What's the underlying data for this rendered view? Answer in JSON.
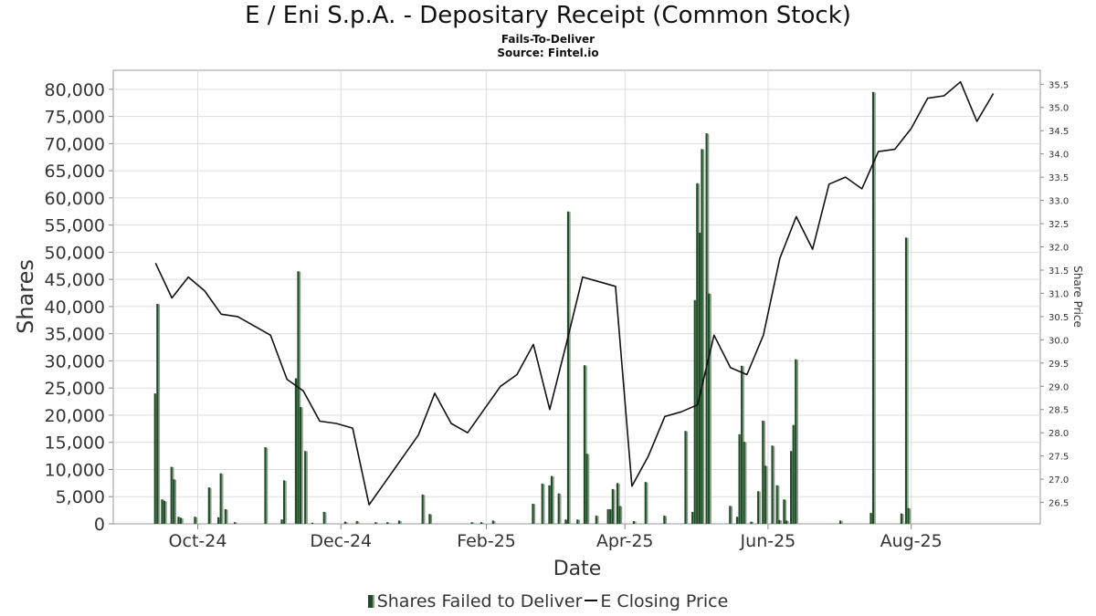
{
  "chart_data": {
    "type": "bar",
    "title": "E / Eni S.p.A. - Depositary Receipt (Common Stock)",
    "subtitle": "Fails-To-Deliver",
    "source": "Source: Fintel.io",
    "xlabel": "Date",
    "ylabel": "Shares",
    "y2label": "Share Price",
    "xlim": [
      "2024-08-26",
      "2025-09-25"
    ],
    "ylim": [
      0,
      83500
    ],
    "y2lim": [
      26.04,
      35.8
    ],
    "x_ticks": [
      {
        "label": "Oct-24",
        "date": "2024-10-01"
      },
      {
        "label": "Dec-24",
        "date": "2024-12-01"
      },
      {
        "label": "Feb-25",
        "date": "2025-02-01"
      },
      {
        "label": "Apr-25",
        "date": "2025-04-01"
      },
      {
        "label": "Jun-25",
        "date": "2025-06-01"
      },
      {
        "label": "Aug-25",
        "date": "2025-08-01"
      }
    ],
    "y_ticks": [
      "0",
      "5,000",
      "10,000",
      "15,000",
      "20,000",
      "25,000",
      "30,000",
      "35,000",
      "40,000",
      "45,000",
      "50,000",
      "55,000",
      "60,000",
      "65,000",
      "70,000",
      "75,000",
      "80,000"
    ],
    "y2_ticks": [
      "26.5",
      "27.0",
      "27.5",
      "28.0",
      "28.5",
      "29.0",
      "29.5",
      "30.0",
      "30.5",
      "31.0",
      "31.5",
      "32.0",
      "32.5",
      "33.0",
      "33.5",
      "34.0",
      "34.5",
      "35.0",
      "35.5"
    ],
    "grid": true,
    "legend_position": "bottom",
    "series": [
      {
        "name": "Shares Failed to Deliver",
        "kind": "bar",
        "color": "#1d4d24",
        "points": [
          [
            "2024-09-13",
            24000
          ],
          [
            "2024-09-14",
            40500
          ],
          [
            "2024-09-16",
            4500
          ],
          [
            "2024-09-17",
            4200
          ],
          [
            "2024-09-20",
            10500
          ],
          [
            "2024-09-21",
            8200
          ],
          [
            "2024-09-23",
            1300
          ],
          [
            "2024-09-24",
            1100
          ],
          [
            "2024-09-30",
            1300
          ],
          [
            "2024-10-06",
            6700
          ],
          [
            "2024-10-10",
            1200
          ],
          [
            "2024-10-11",
            9300
          ],
          [
            "2024-10-13",
            2700
          ],
          [
            "2024-10-17",
            300
          ],
          [
            "2024-10-30",
            14100
          ],
          [
            "2024-11-06",
            800
          ],
          [
            "2024-11-07",
            8000
          ],
          [
            "2024-11-12",
            26800
          ],
          [
            "2024-11-13",
            46500
          ],
          [
            "2024-11-14",
            21500
          ],
          [
            "2024-11-16",
            13400
          ],
          [
            "2024-11-19",
            200
          ],
          [
            "2024-11-24",
            2200
          ],
          [
            "2024-12-03",
            400
          ],
          [
            "2024-12-08",
            500
          ],
          [
            "2024-12-16",
            300
          ],
          [
            "2024-12-21",
            300
          ],
          [
            "2024-12-26",
            600
          ],
          [
            "2025-01-05",
            5400
          ],
          [
            "2025-01-08",
            1800
          ],
          [
            "2025-01-26",
            300
          ],
          [
            "2025-01-30",
            300
          ],
          [
            "2025-02-04",
            600
          ],
          [
            "2025-02-21",
            3700
          ],
          [
            "2025-02-25",
            7400
          ],
          [
            "2025-02-28",
            7100
          ],
          [
            "2025-03-01",
            8800
          ],
          [
            "2025-03-04",
            5600
          ],
          [
            "2025-03-07",
            800
          ],
          [
            "2025-03-08",
            57500
          ],
          [
            "2025-03-12",
            800
          ],
          [
            "2025-03-15",
            29200
          ],
          [
            "2025-03-16",
            12900
          ],
          [
            "2025-03-20",
            1500
          ],
          [
            "2025-03-25",
            2700
          ],
          [
            "2025-03-26",
            2700
          ],
          [
            "2025-03-27",
            6400
          ],
          [
            "2025-03-29",
            7500
          ],
          [
            "2025-03-30",
            3300
          ],
          [
            "2025-04-05",
            500
          ],
          [
            "2025-04-10",
            7700
          ],
          [
            "2025-04-18",
            1500
          ],
          [
            "2025-04-27",
            17100
          ],
          [
            "2025-04-30",
            2200
          ],
          [
            "2025-05-01",
            41200
          ],
          [
            "2025-05-02",
            62700
          ],
          [
            "2025-05-03",
            53600
          ],
          [
            "2025-05-04",
            69000
          ],
          [
            "2025-05-06",
            71900
          ],
          [
            "2025-05-07",
            42400
          ],
          [
            "2025-05-16",
            3300
          ],
          [
            "2025-05-19",
            1300
          ],
          [
            "2025-05-20",
            16500
          ],
          [
            "2025-05-21",
            29100
          ],
          [
            "2025-05-22",
            15100
          ],
          [
            "2025-05-25",
            400
          ],
          [
            "2025-05-28",
            6000
          ],
          [
            "2025-05-30",
            19000
          ],
          [
            "2025-05-31",
            10700
          ],
          [
            "2025-06-03",
            14400
          ],
          [
            "2025-06-05",
            7100
          ],
          [
            "2025-06-06",
            700
          ],
          [
            "2025-06-08",
            4500
          ],
          [
            "2025-06-09",
            600
          ],
          [
            "2025-06-11",
            13400
          ],
          [
            "2025-06-12",
            18200
          ],
          [
            "2025-06-13",
            30300
          ],
          [
            "2025-07-02",
            600
          ],
          [
            "2025-07-15",
            2000
          ],
          [
            "2025-07-16",
            79500
          ],
          [
            "2025-07-28",
            1900
          ],
          [
            "2025-07-30",
            52700
          ],
          [
            "2025-07-31",
            2900
          ]
        ]
      },
      {
        "name": "E Closing Price",
        "kind": "line",
        "color": "#111111",
        "points": [
          [
            "2024-09-13",
            31.65
          ],
          [
            "2024-09-20",
            30.9
          ],
          [
            "2024-09-27",
            31.35
          ],
          [
            "2024-10-04",
            31.05
          ],
          [
            "2024-10-11",
            30.55
          ],
          [
            "2024-10-18",
            30.5
          ],
          [
            "2024-10-25",
            30.3
          ],
          [
            "2024-11-01",
            30.1
          ],
          [
            "2024-11-08",
            29.15
          ],
          [
            "2024-11-15",
            28.9
          ],
          [
            "2024-11-22",
            28.25
          ],
          [
            "2024-11-29",
            28.2
          ],
          [
            "2024-12-06",
            28.1
          ],
          [
            "2024-12-13",
            26.45
          ],
          [
            "2024-12-20",
            26.95
          ],
          [
            "2024-12-27",
            27.45
          ],
          [
            "2025-01-03",
            27.95
          ],
          [
            "2025-01-10",
            28.85
          ],
          [
            "2025-01-17",
            28.2
          ],
          [
            "2025-01-24",
            28.0
          ],
          [
            "2025-01-31",
            28.5
          ],
          [
            "2025-02-07",
            29.0
          ],
          [
            "2025-02-14",
            29.25
          ],
          [
            "2025-02-21",
            29.9
          ],
          [
            "2025-02-28",
            28.5
          ],
          [
            "2025-03-07",
            29.9
          ],
          [
            "2025-03-14",
            31.35
          ],
          [
            "2025-03-21",
            31.25
          ],
          [
            "2025-03-28",
            31.15
          ],
          [
            "2025-04-04",
            26.85
          ],
          [
            "2025-04-11",
            27.5
          ],
          [
            "2025-04-18",
            28.35
          ],
          [
            "2025-04-25",
            28.45
          ],
          [
            "2025-05-02",
            28.6
          ],
          [
            "2025-05-09",
            30.1
          ],
          [
            "2025-05-16",
            29.4
          ],
          [
            "2025-05-23",
            29.25
          ],
          [
            "2025-05-30",
            30.1
          ],
          [
            "2025-06-06",
            31.75
          ],
          [
            "2025-06-13",
            32.65
          ],
          [
            "2025-06-20",
            31.95
          ],
          [
            "2025-06-27",
            33.35
          ],
          [
            "2025-07-04",
            33.5
          ],
          [
            "2025-07-11",
            33.25
          ],
          [
            "2025-07-18",
            34.05
          ],
          [
            "2025-07-25",
            34.1
          ],
          [
            "2025-08-01",
            34.55
          ],
          [
            "2025-08-08",
            35.2
          ],
          [
            "2025-08-15",
            35.25
          ],
          [
            "2025-08-22",
            35.55
          ],
          [
            "2025-08-29",
            34.7
          ],
          [
            "2025-09-05",
            35.3
          ]
        ]
      }
    ]
  }
}
